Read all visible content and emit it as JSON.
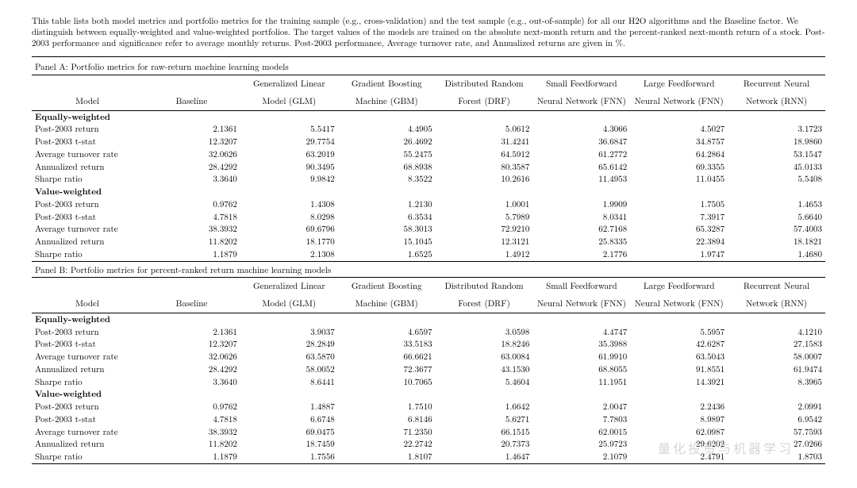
{
  "caption": "This table lists both model metrics and portfolio metrics for the training sample (e.g., cross-validation) and the test sample (e.g., out-of-sample) for all our H2O algorithms and the Baseline factor. We distinguish between equally-weighted and value-weighted portfolios. The target values of the models are trained on the absolute next-month return and the percent-ranked next-month return of a stock. Post-2003 performance and significance refer to average monthly returns. Post-2003 performance, Average turnover rate, and Annualized returns are given in %.",
  "columns": {
    "model": "Model",
    "baseline": "Baseline",
    "glm1": "Generalized Linear",
    "glm2": "Model (GLM)",
    "gbm1": "Gradient Boosting",
    "gbm2": "Machine (GBM)",
    "drf1": "Distributed Random",
    "drf2": "Forest (DRF)",
    "sfnn1": "Small Feedforward",
    "sfnn2": "Neural Network (FNN)",
    "lfnn1": "Large Feedforward",
    "lfnn2": "Neural Network (FNN)",
    "rnn1": "Recurrent Neural",
    "rnn2": "Network (RNN)"
  },
  "panelA": {
    "title": "Panel A: Portfolio metrics for raw-return machine learning models",
    "eq_label": "Equally-weighted",
    "vw_label": "Value-weighted",
    "metrics": [
      "Post-2003 return",
      "Post-2003 t-stat",
      "Average turnover rate",
      "Annualized return",
      "Sharpe ratio"
    ],
    "eq": [
      [
        "2.1361",
        "5.5417",
        "4.4905",
        "5.0612",
        "4.3066",
        "4.5027",
        "3.1723"
      ],
      [
        "12.3207",
        "29.7754",
        "26.4692",
        "31.4241",
        "36.6847",
        "34.8757",
        "18.9860"
      ],
      [
        "32.0626",
        "63.2019",
        "55.2475",
        "64.5912",
        "61.2772",
        "64.2864",
        "53.1547"
      ],
      [
        "28.4292",
        "90.3495",
        "68.8938",
        "80.3587",
        "65.6142",
        "69.3355",
        "45.0133"
      ],
      [
        "3.3640",
        "9.9842",
        "8.3522",
        "10.2616",
        "11.4953",
        "11.0455",
        "5.5408"
      ]
    ],
    "vw": [
      [
        "0.9762",
        "1.4308",
        "1.2130",
        "1.0001",
        "1.9909",
        "1.7505",
        "1.4653"
      ],
      [
        "4.7818",
        "8.0298",
        "6.3534",
        "5.7989",
        "8.0341",
        "7.3917",
        "5.6640"
      ],
      [
        "38.3932",
        "69.6796",
        "58.3013",
        "72.9210",
        "62.7168",
        "65.3287",
        "57.4003"
      ],
      [
        "11.8202",
        "18.1770",
        "15.1045",
        "12.3121",
        "25.8335",
        "22.3894",
        "18.1821"
      ],
      [
        "1.1879",
        "2.1308",
        "1.6525",
        "1.4912",
        "2.1776",
        "1.9747",
        "1.4680"
      ]
    ]
  },
  "panelB": {
    "title": "Panel B: Portfolio metrics for percent-ranked return machine learning models",
    "eq_label": "Equally-weighted",
    "vw_label": "Value-weighted",
    "metrics": [
      "Post-2003 return",
      "Post-2003 t-stat",
      "Average turnover rate",
      "Annualized return",
      "Sharpe ratio"
    ],
    "eq": [
      [
        "2.1361",
        "3.9037",
        "4.6597",
        "3.0598",
        "4.4747",
        "5.5957",
        "4.1210"
      ],
      [
        "12.3207",
        "28.2849",
        "33.5183",
        "18.8246",
        "35.3988",
        "42.6287",
        "27.1583"
      ],
      [
        "32.0626",
        "63.5870",
        "66.6621",
        "63.0084",
        "61.9910",
        "63.5043",
        "58.0007"
      ],
      [
        "28.4292",
        "58.0052",
        "72.3677",
        "43.1530",
        "68.8055",
        "91.8551",
        "61.9474"
      ],
      [
        "3.3640",
        "8.6441",
        "10.7065",
        "5.4604",
        "11.1951",
        "14.3921",
        "8.3965"
      ]
    ],
    "vw": [
      [
        "0.9762",
        "1.4887",
        "1.7510",
        "1.6642",
        "2.0047",
        "2.2436",
        "2.0991"
      ],
      [
        "4.7818",
        "6.6748",
        "6.8146",
        "5.6271",
        "7.7803",
        "8.9897",
        "6.9542"
      ],
      [
        "38.3932",
        "69.0475",
        "71.2350",
        "66.1515",
        "62.0015",
        "62.0987",
        "57.7593"
      ],
      [
        "11.8202",
        "18.7459",
        "22.2742",
        "20.7373",
        "25.9723",
        "29.6202",
        "27.0266"
      ],
      [
        "1.1879",
        "1.7556",
        "1.8107",
        "1.4647",
        "2.1079",
        "2.4791",
        "1.8703"
      ]
    ]
  },
  "style": {
    "font_family": "Computer Modern / serif",
    "font_size_pt": 11,
    "text_color": "#000000",
    "background_color": "#ffffff",
    "rule_color": "#000000",
    "alignment": {
      "label": "left",
      "numbers": "right",
      "headers": "center-right"
    }
  },
  "watermark": "量化投资与机器学习"
}
